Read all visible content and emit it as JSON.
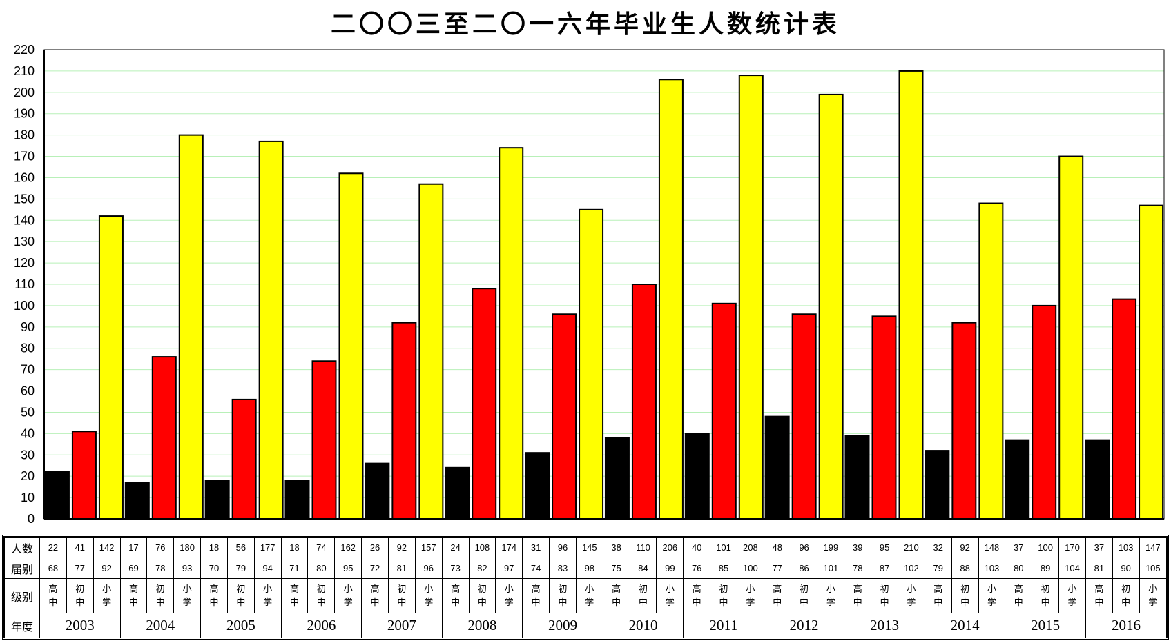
{
  "title": "二〇〇三至二〇一六年毕业生人数统计表",
  "colors": {
    "senior": "#000000",
    "junior": "#ff0000",
    "primary": "#ffff00",
    "grid": "#b8f0b8"
  },
  "table_labels": {
    "count": "人数",
    "cohort": "届别",
    "level": "级别",
    "year": "年度"
  },
  "level_labels": [
    [
      "高",
      "中"
    ],
    [
      "初",
      "中"
    ],
    [
      "小",
      "学"
    ]
  ],
  "chart_data": {
    "type": "bar",
    "title": "二〇〇三至二〇一六年毕业生人数统计表",
    "ylim": [
      0,
      220
    ],
    "ytick_step": 10,
    "grid": true,
    "categories": [
      "2003",
      "2004",
      "2005",
      "2006",
      "2007",
      "2008",
      "2009",
      "2010",
      "2011",
      "2012",
      "2013",
      "2014",
      "2015",
      "2016"
    ],
    "series": [
      {
        "name": "高中",
        "color": "#000000",
        "values": [
          22,
          17,
          18,
          18,
          26,
          24,
          31,
          38,
          40,
          48,
          39,
          32,
          37,
          37
        ],
        "cohort": [
          68,
          69,
          70,
          71,
          72,
          73,
          74,
          75,
          76,
          77,
          78,
          79,
          80,
          81
        ]
      },
      {
        "name": "初中",
        "color": "#ff0000",
        "values": [
          41,
          76,
          56,
          74,
          92,
          108,
          96,
          110,
          101,
          96,
          95,
          92,
          100,
          103
        ],
        "cohort": [
          77,
          78,
          79,
          80,
          81,
          82,
          83,
          84,
          85,
          86,
          87,
          88,
          89,
          90
        ]
      },
      {
        "name": "小学",
        "color": "#ffff00",
        "values": [
          142,
          180,
          177,
          162,
          157,
          174,
          145,
          206,
          208,
          199,
          210,
          148,
          170,
          147
        ],
        "cohort": [
          92,
          93,
          94,
          95,
          96,
          97,
          98,
          99,
          100,
          101,
          102,
          103,
          104,
          105
        ]
      }
    ]
  }
}
